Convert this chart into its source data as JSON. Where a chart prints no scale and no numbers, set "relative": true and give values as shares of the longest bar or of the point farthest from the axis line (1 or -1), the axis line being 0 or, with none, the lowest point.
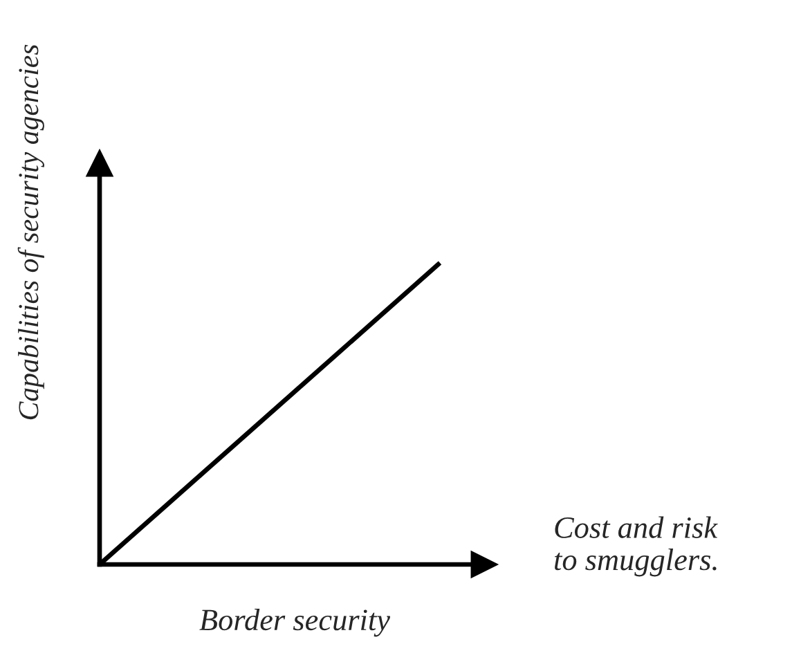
{
  "chart_data": {
    "type": "line",
    "relative": true,
    "xlabel": "Border security",
    "ylabel": "Capabilities of security agencies",
    "annotations": [
      "Cost and risk\nto smugglers."
    ],
    "categories": [
      null,
      null
    ],
    "series": [
      {
        "color": "#000000",
        "values": [
          0,
          1
        ]
      }
    ],
    "legend": false,
    "marker": "none",
    "line_style": "solid"
  }
}
